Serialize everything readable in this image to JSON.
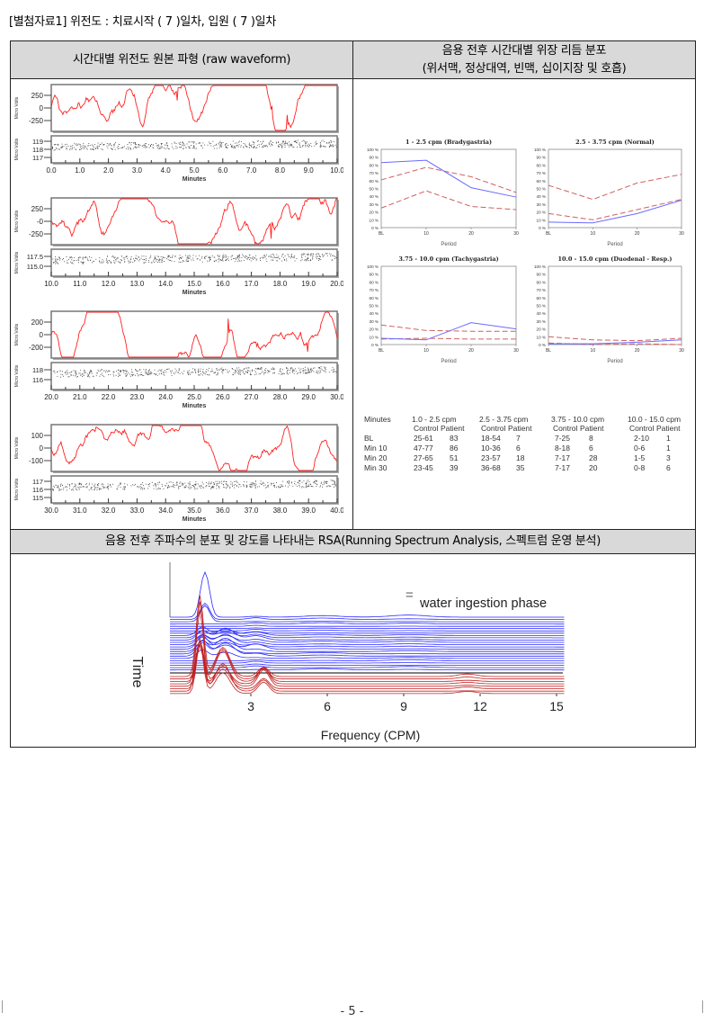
{
  "document": {
    "title": "[별첨자료1] 위전도 : 치료시작 ( 7 )일차, 입원 ( 7 )일차",
    "page_number": "- 5 -"
  },
  "table": {
    "header_left": "시간대별 위전도 원본 파형 (raw waveform)",
    "header_right_line1": "음용 전후 시간대별 위장 리듬 분포",
    "header_right_line2": "(위서맥, 정상대역, 빈맥, 십이지장 및 호흡)",
    "header_rsa": "음용 전후 주파수의 분포 및 강도를 나타내는 RSA(Running Spectrum Analysis, 스펙트럼 운영 분석)"
  },
  "waveforms": {
    "ylabel": "Micro Volts",
    "xlabel": "Minutes",
    "colors": {
      "signal": "#ff2020",
      "baseline": "#444444"
    },
    "panels": [
      {
        "top_ticks": [
          "250",
          "0",
          "-250"
        ],
        "bottom_ticks": [
          "119",
          "118",
          "117"
        ],
        "x_ticks": [
          "0.0",
          "1.0",
          "2.0",
          "3.0",
          "4.0",
          "5.0",
          "6.0",
          "7.0",
          "8.0",
          "9.0",
          "10.0"
        ]
      },
      {
        "top_ticks": [
          "250",
          "-0",
          "-250"
        ],
        "bottom_ticks": [
          "117.5",
          "115.0"
        ],
        "x_ticks": [
          "10.0",
          "11.0",
          "12.0",
          "13.0",
          "14.0",
          "15.0",
          "16.0",
          "17.0",
          "18.0",
          "19.0",
          "20.0"
        ]
      },
      {
        "top_ticks": [
          "200",
          "0",
          "-200"
        ],
        "bottom_ticks": [
          "118",
          "116"
        ],
        "x_ticks": [
          "20.0",
          "21.0",
          "22.0",
          "23.0",
          "24.0",
          "25.0",
          "26.0",
          "27.0",
          "28.0",
          "29.0",
          "30.0"
        ]
      },
      {
        "top_ticks": [
          "100",
          "0",
          "-100"
        ],
        "bottom_ticks": [
          "117",
          "116",
          "115"
        ],
        "x_ticks": [
          "30.0",
          "31.0",
          "32.0",
          "33.0",
          "34.0",
          "35.0",
          "36.0",
          "37.0",
          "38.0",
          "39.0",
          "40.0"
        ]
      }
    ]
  },
  "chart_data": [
    {
      "type": "line",
      "title": "1 - 2.5 cpm (Bradygastria)",
      "xlabel": "Period",
      "categories": [
        "BL",
        "10",
        "20",
        "30"
      ],
      "ylim": [
        0,
        100
      ],
      "y_ticks": [
        "0 %",
        "10 %",
        "20 %",
        "30 %",
        "40 %",
        "50 %",
        "60 %",
        "70 %",
        "80 %",
        "90 %",
        "100 %"
      ],
      "series": [
        {
          "values": [
            83,
            86,
            51,
            39
          ],
          "color": "#6a6aff",
          "style": "solid"
        },
        {
          "values": [
            61,
            77,
            65,
            45
          ],
          "color": "#d06060",
          "style": "dashed"
        },
        {
          "values": [
            25,
            47,
            27,
            23
          ],
          "color": "#d06060",
          "style": "dashed"
        }
      ]
    },
    {
      "type": "line",
      "title": "2.5 - 3.75 cpm (Normal)",
      "xlabel": "Period",
      "categories": [
        "BL",
        "10",
        "20",
        "30"
      ],
      "ylim": [
        0,
        100
      ],
      "y_ticks": [
        "0 %",
        "10 %",
        "20 %",
        "30 %",
        "40 %",
        "50 %",
        "60 %",
        "70 %",
        "80 %",
        "90 %",
        "100 %"
      ],
      "series": [
        {
          "values": [
            7,
            6,
            18,
            35
          ],
          "color": "#6a6aff",
          "style": "solid"
        },
        {
          "values": [
            54,
            36,
            57,
            68
          ],
          "color": "#d06060",
          "style": "dashed"
        },
        {
          "values": [
            18,
            10,
            23,
            36
          ],
          "color": "#d06060",
          "style": "dashed"
        }
      ]
    },
    {
      "type": "line",
      "title": "3.75 - 10.0 cpm (Tachygastria)",
      "xlabel": "Period",
      "categories": [
        "BL",
        "10",
        "20",
        "30"
      ],
      "ylim": [
        0,
        100
      ],
      "y_ticks": [
        "0 %",
        "10 %",
        "20 %",
        "30 %",
        "40 %",
        "50 %",
        "60 %",
        "70 %",
        "80 %",
        "90 %",
        "100 %"
      ],
      "series": [
        {
          "values": [
            8,
            6,
            28,
            20
          ],
          "color": "#6a6aff",
          "style": "solid"
        },
        {
          "values": [
            25,
            18,
            17,
            17
          ],
          "color": "#d06060",
          "style": "dashed"
        },
        {
          "values": [
            7,
            8,
            7,
            7
          ],
          "color": "#d06060",
          "style": "dashed"
        }
      ]
    },
    {
      "type": "line",
      "title": "10.0 - 15.0 cpm (Duodenal - Resp.)",
      "xlabel": "Period",
      "categories": [
        "BL",
        "10",
        "20",
        "30"
      ],
      "ylim": [
        0,
        100
      ],
      "y_ticks": [
        "0 %",
        "10 %",
        "20 %",
        "30 %",
        "40 %",
        "50 %",
        "60 %",
        "70 %",
        "80 %",
        "90 %",
        "100 %"
      ],
      "series": [
        {
          "values": [
            1,
            1,
            3,
            6
          ],
          "color": "#6a6aff",
          "style": "solid"
        },
        {
          "values": [
            10,
            6,
            5,
            8
          ],
          "color": "#d06060",
          "style": "dashed"
        },
        {
          "values": [
            2,
            0,
            1,
            0
          ],
          "color": "#d06060",
          "style": "dashed"
        }
      ]
    }
  ],
  "rhythm_table": {
    "headers": [
      "Minutes",
      "1.0 - 2.5 cpm",
      "2.5 - 3.75 cpm",
      "3.75 - 10.0 cpm",
      "10.0 - 15.0 cpm"
    ],
    "subheaders": [
      "Control",
      "Patient"
    ],
    "rows": [
      {
        "label": "BL",
        "cells": [
          "25-61",
          "83",
          "18-54",
          "7",
          "7-25",
          "8",
          "2-10",
          "1"
        ]
      },
      {
        "label": "Min  10",
        "cells": [
          "47-77",
          "86",
          "10-36",
          "6",
          "8-18",
          "6",
          "0-6",
          "1"
        ]
      },
      {
        "label": "Min  20",
        "cells": [
          "27-65",
          "51",
          "23-57",
          "18",
          "7-17",
          "28",
          "1-5",
          "3"
        ]
      },
      {
        "label": "Min  30",
        "cells": [
          "23-45",
          "39",
          "36-68",
          "35",
          "7-17",
          "20",
          "0-8",
          "6"
        ]
      }
    ]
  },
  "rsa": {
    "xlabel": "Frequency (CPM)",
    "ylabel": "Time",
    "x_ticks": [
      "3",
      "6",
      "9",
      "12",
      "15"
    ],
    "legend_symbol": "=",
    "legend_text": "water ingestion phase",
    "colors": {
      "post": "#2a2aff",
      "pre": "#c02020",
      "marker": "#000000"
    }
  }
}
